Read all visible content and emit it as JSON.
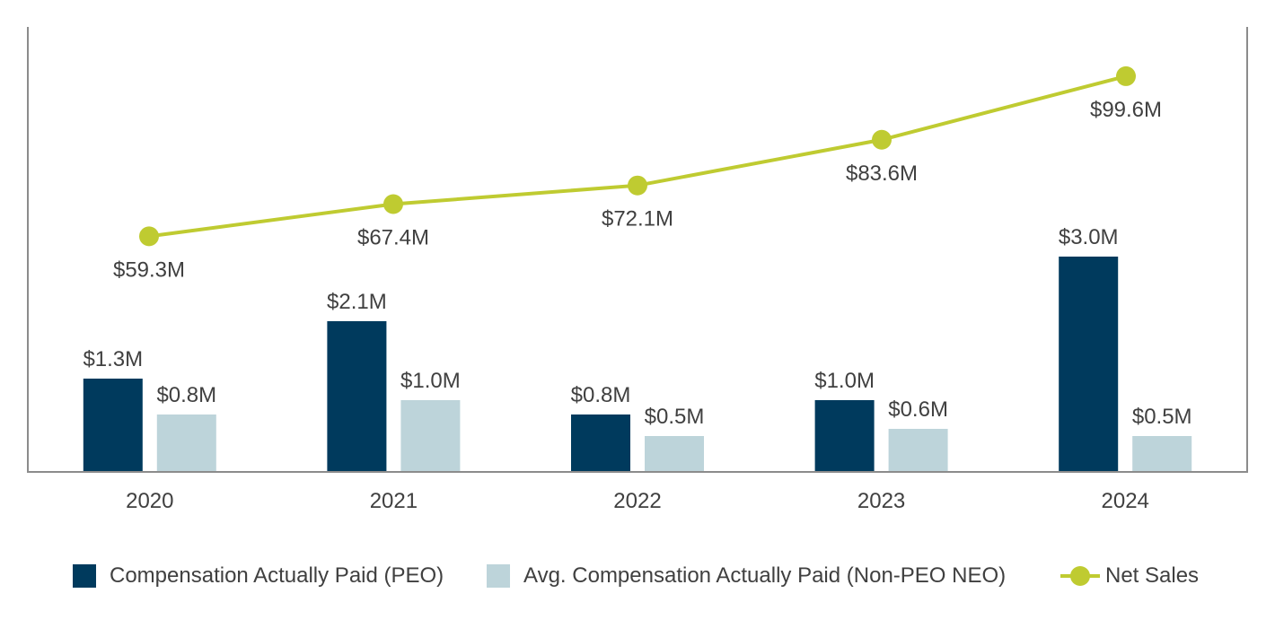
{
  "chart_data": {
    "type": "bar+line",
    "categories": [
      "2020",
      "2021",
      "2022",
      "2023",
      "2024"
    ],
    "series": [
      {
        "name": "Compensation Actually Paid (PEO)",
        "kind": "bar",
        "values": [
          1.3,
          2.1,
          0.8,
          1.0,
          3.0
        ],
        "labels": [
          "$1.3M",
          "$2.1M",
          "$0.8M",
          "$1.0M",
          "$3.0M"
        ],
        "color": "#003a5d"
      },
      {
        "name": "Avg. Compensation Actually Paid (Non-PEO NEO)",
        "kind": "bar",
        "values": [
          0.8,
          1.0,
          0.5,
          0.6,
          0.5
        ],
        "labels": [
          "$0.8M",
          "$1.0M",
          "$0.5M",
          "$0.6M",
          "$0.5M"
        ],
        "color": "#bdd4da"
      },
      {
        "name": "Net Sales",
        "kind": "line",
        "values": [
          59.3,
          67.4,
          72.1,
          83.6,
          99.6
        ],
        "labels": [
          "$59.3M",
          "$67.4M",
          "$72.1M",
          "$83.6M",
          "$99.6M"
        ],
        "color": "#bfcb31"
      }
    ],
    "title": "",
    "xlabel": "",
    "ylabel": "",
    "bar_axis_range": [
      0,
      6.2
    ],
    "line_axis_range": [
      0,
      112
    ],
    "grid": false,
    "legend_position": "bottom"
  }
}
